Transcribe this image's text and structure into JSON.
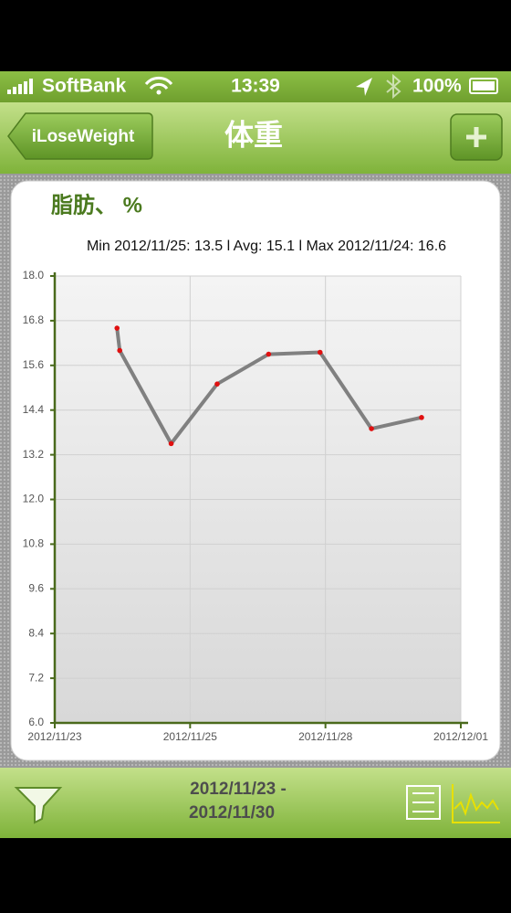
{
  "status_bar": {
    "carrier": "SoftBank",
    "time": "13:39",
    "battery": "100%"
  },
  "nav_bar": {
    "back": "iLoseWeight",
    "title": "体重"
  },
  "chart_data": {
    "type": "line",
    "title": "脂肪、 %",
    "subtitle": "Min 2012/11/25: 13.5  l  Avg: 15.1  l  Max 2012/11/24: 16.6",
    "x": [
      0.46,
      0.48,
      0.86,
      1.2,
      1.58,
      1.96,
      2.34,
      2.71
    ],
    "series": [
      {
        "color": "#808080",
        "marker_color": "#e01010",
        "values": [
          16.6,
          16.0,
          13.5,
          15.1,
          15.9,
          15.95,
          13.9,
          14.2
        ]
      }
    ],
    "xlim": [
      0,
      3
    ],
    "xticks": [
      {
        "value": 0,
        "label": "2012/11/23"
      },
      {
        "value": 1,
        "label": "2012/11/25"
      },
      {
        "value": 2,
        "label": "2012/11/28"
      },
      {
        "value": 3,
        "label": "2012/12/01"
      }
    ],
    "ylim": [
      6,
      18
    ],
    "yticks": [
      {
        "value": 6,
        "label": "6.0"
      },
      {
        "value": 7.2,
        "label": "7.2"
      },
      {
        "value": 8.4,
        "label": "8.4"
      },
      {
        "value": 9.6,
        "label": "9.6"
      },
      {
        "value": 10.8,
        "label": "10.8"
      },
      {
        "value": 12,
        "label": "12.0"
      },
      {
        "value": 13.2,
        "label": "13.2"
      },
      {
        "value": 14.4,
        "label": "14.4"
      },
      {
        "value": 15.6,
        "label": "15.6"
      },
      {
        "value": 16.8,
        "label": "16.8"
      },
      {
        "value": 18,
        "label": "18.0"
      }
    ],
    "grid": true
  },
  "toolbar": {
    "range_start": "2012/11/23 -",
    "range_end": "2012/11/30"
  }
}
